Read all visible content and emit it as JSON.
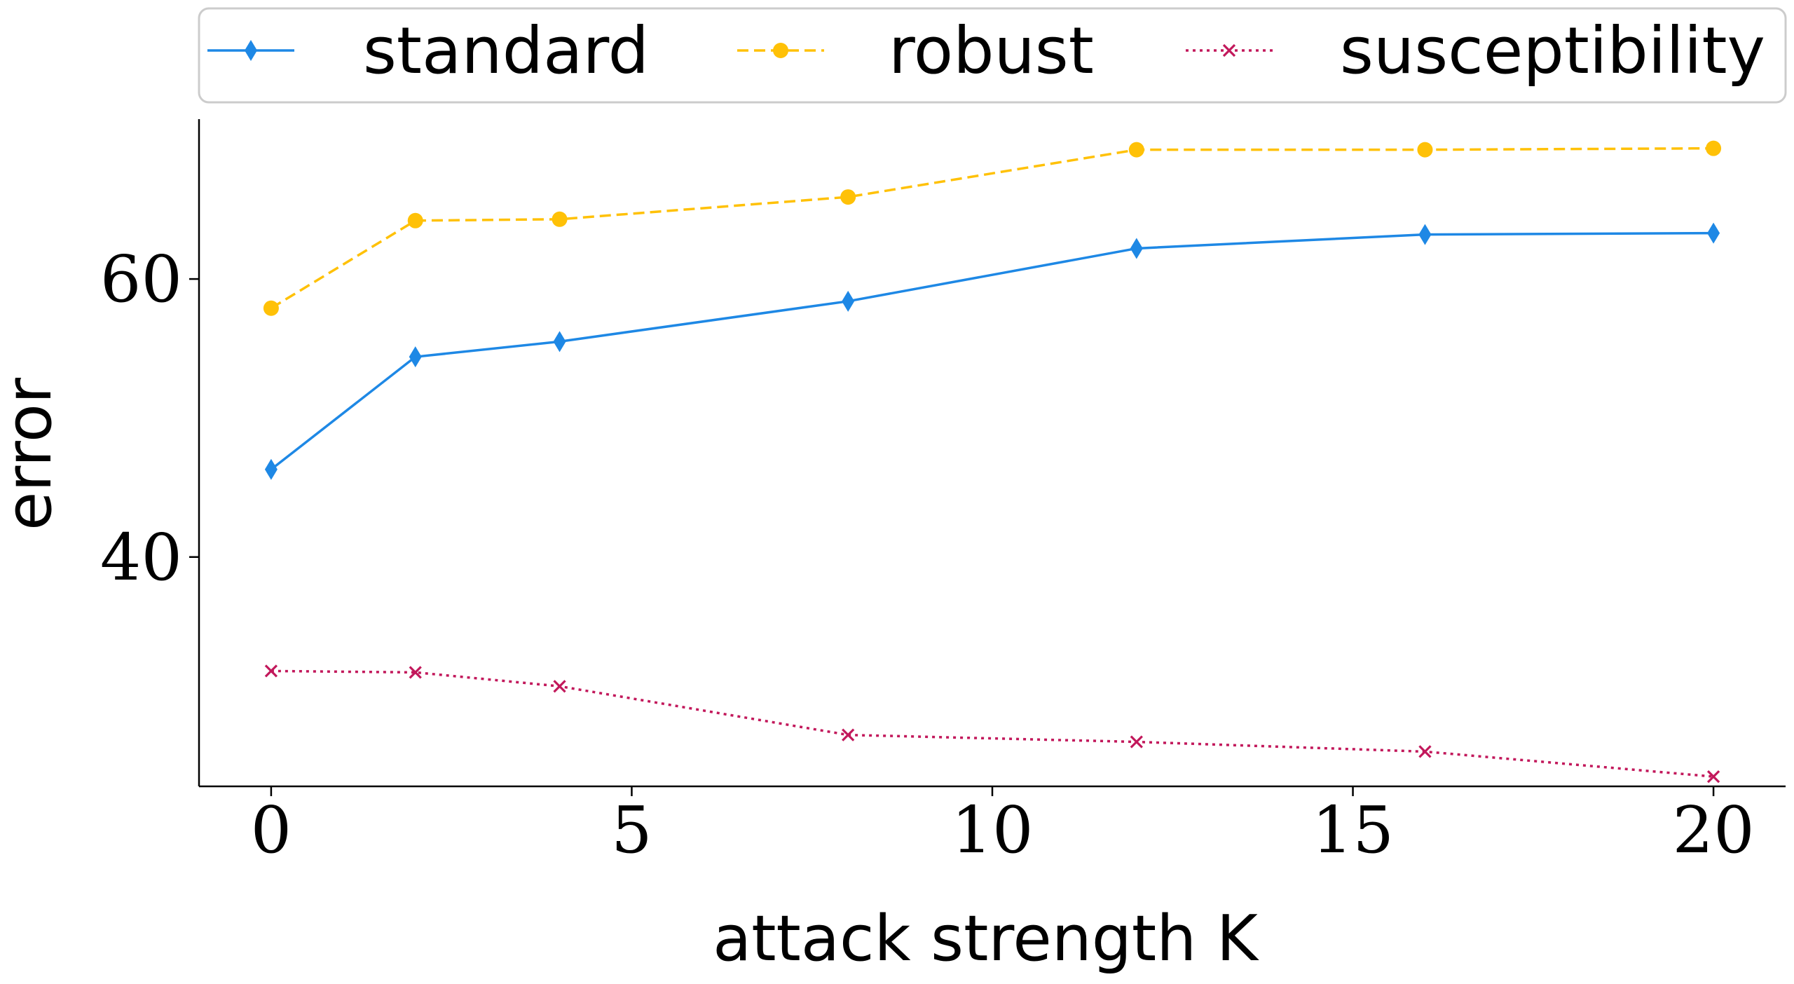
{
  "chart_data": {
    "type": "line",
    "xlabel": "attack strength K",
    "ylabel": "error",
    "xlim": [
      -1,
      21
    ],
    "ylim": [
      23.5,
      71.5
    ],
    "xticks": [
      0,
      5,
      10,
      15,
      20
    ],
    "yticks": [
      40,
      60
    ],
    "legend_position": "top",
    "grid": false,
    "x": [
      0,
      2,
      4,
      8,
      12,
      16,
      20
    ],
    "series": [
      {
        "name": "standard",
        "color": "#1e88e5",
        "linestyle": "solid",
        "marker": "diamond",
        "values": [
          46.3,
          54.4,
          55.5,
          58.4,
          62.2,
          63.2,
          63.3
        ]
      },
      {
        "name": "robust",
        "color": "#ffc107",
        "linestyle": "dashed",
        "marker": "circle",
        "values": [
          57.9,
          64.2,
          64.3,
          65.9,
          69.3,
          69.3,
          69.4
        ]
      },
      {
        "name": "susceptibility",
        "color": "#c2185b",
        "linestyle": "dotted",
        "marker": "x",
        "values": [
          31.8,
          31.7,
          30.7,
          27.2,
          26.7,
          26.0,
          24.2
        ]
      }
    ]
  }
}
